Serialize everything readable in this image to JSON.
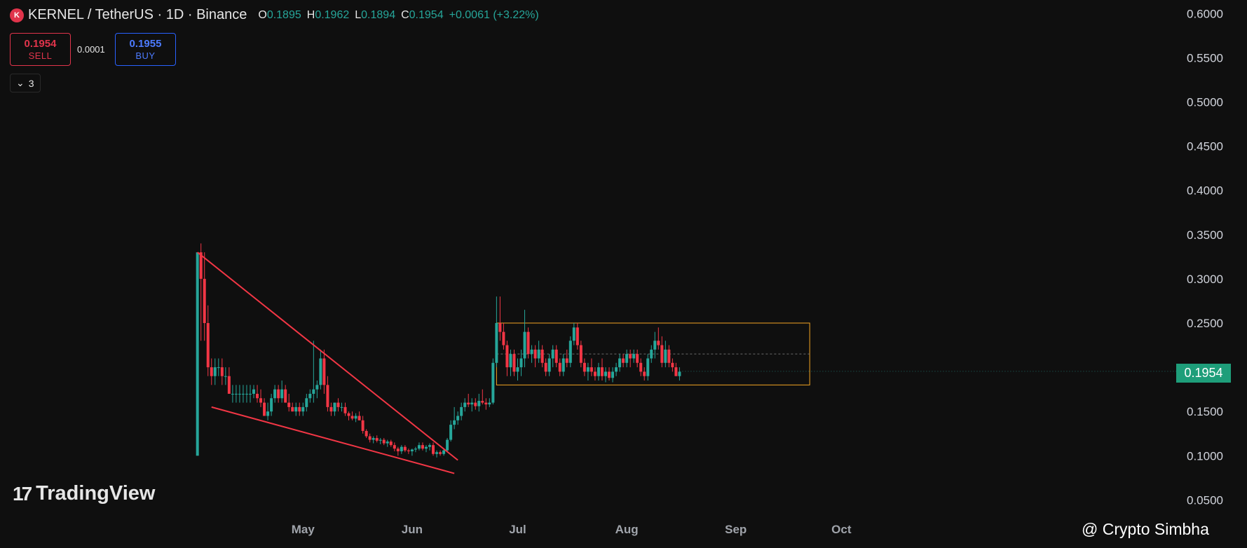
{
  "header": {
    "logo_letter": "K",
    "symbol_title": "KERNEL / TetherUS · 1D · Binance",
    "ohlc": [
      {
        "key": "O",
        "value": "0.1895"
      },
      {
        "key": "H",
        "value": "0.1962"
      },
      {
        "key": "L",
        "value": "0.1894"
      },
      {
        "key": "C",
        "value": "0.1954"
      }
    ],
    "change": "+0.0061 (+3.22%)"
  },
  "trade": {
    "sell_price": "0.1954",
    "sell_label": "SELL",
    "spread": "0.0001",
    "buy_price": "0.1955",
    "buy_label": "BUY"
  },
  "indicators": {
    "count": "3"
  },
  "branding": {
    "logo_text": "TradingView",
    "logo_mark": "17"
  },
  "current_price": "0.1954",
  "watermark": "@ Crypto Simbha",
  "colors": {
    "up": "#26a69a",
    "down": "#f23645",
    "trend": "#f23645",
    "range": "#f5a623",
    "badge": "#1e9e7a"
  },
  "chart_data": {
    "type": "candlestick",
    "y_axis": {
      "ticks": [
        "0.6000",
        "0.5500",
        "0.5000",
        "0.4500",
        "0.4000",
        "0.3500",
        "0.3000",
        "0.2500",
        "0.1500",
        "0.1000",
        "0.0500"
      ],
      "range": [
        0.05,
        0.6
      ]
    },
    "x_axis": {
      "labels": [
        {
          "text": "May",
          "day": 14
        },
        {
          "text": "Jun",
          "day": 45
        },
        {
          "text": "Jul",
          "day": 75
        },
        {
          "text": "Aug",
          "day": 106
        },
        {
          "text": "Sep",
          "day": 137
        },
        {
          "text": "Oct",
          "day": 167
        }
      ]
    },
    "candles": [
      [
        -16,
        0.1,
        0.33,
        0.1,
        0.33
      ],
      [
        -15,
        0.33,
        0.34,
        0.23,
        0.3
      ],
      [
        -14,
        0.3,
        0.33,
        0.23,
        0.25
      ],
      [
        -13,
        0.25,
        0.27,
        0.19,
        0.2
      ],
      [
        -12,
        0.2,
        0.21,
        0.18,
        0.19
      ],
      [
        -11,
        0.19,
        0.21,
        0.18,
        0.2
      ],
      [
        -10,
        0.2,
        0.21,
        0.19,
        0.2
      ],
      [
        -9,
        0.2,
        0.21,
        0.18,
        0.19
      ],
      [
        -8,
        0.19,
        0.2,
        0.18,
        0.19
      ],
      [
        -7,
        0.19,
        0.2,
        0.17,
        0.17
      ],
      [
        -6,
        0.17,
        0.18,
        0.16,
        0.17
      ],
      [
        -5,
        0.17,
        0.18,
        0.16,
        0.17
      ],
      [
        -4,
        0.17,
        0.18,
        0.16,
        0.17
      ],
      [
        -3,
        0.17,
        0.18,
        0.16,
        0.17
      ],
      [
        -2,
        0.17,
        0.18,
        0.16,
        0.17
      ],
      [
        -1,
        0.17,
        0.18,
        0.16,
        0.17
      ],
      [
        0,
        0.17,
        0.18,
        0.165,
        0.175
      ],
      [
        1,
        0.17,
        0.18,
        0.16,
        0.165
      ],
      [
        2,
        0.165,
        0.175,
        0.155,
        0.16
      ],
      [
        3,
        0.16,
        0.165,
        0.145,
        0.145
      ],
      [
        4,
        0.145,
        0.16,
        0.14,
        0.15
      ],
      [
        5,
        0.15,
        0.17,
        0.145,
        0.165
      ],
      [
        6,
        0.165,
        0.18,
        0.16,
        0.175
      ],
      [
        7,
        0.175,
        0.18,
        0.16,
        0.165
      ],
      [
        8,
        0.165,
        0.185,
        0.16,
        0.175
      ],
      [
        9,
        0.175,
        0.18,
        0.16,
        0.16
      ],
      [
        10,
        0.16,
        0.17,
        0.15,
        0.155
      ],
      [
        11,
        0.155,
        0.16,
        0.15,
        0.15
      ],
      [
        12,
        0.15,
        0.16,
        0.145,
        0.155
      ],
      [
        13,
        0.155,
        0.16,
        0.145,
        0.15
      ],
      [
        14,
        0.15,
        0.16,
        0.145,
        0.155
      ],
      [
        15,
        0.155,
        0.17,
        0.15,
        0.165
      ],
      [
        16,
        0.165,
        0.175,
        0.16,
        0.17
      ],
      [
        17,
        0.17,
        0.23,
        0.16,
        0.175
      ],
      [
        18,
        0.175,
        0.185,
        0.165,
        0.18
      ],
      [
        19,
        0.18,
        0.22,
        0.175,
        0.21
      ],
      [
        20,
        0.21,
        0.22,
        0.17,
        0.18
      ],
      [
        21,
        0.18,
        0.19,
        0.15,
        0.155
      ],
      [
        22,
        0.155,
        0.16,
        0.145,
        0.15
      ],
      [
        23,
        0.15,
        0.16,
        0.145,
        0.16
      ],
      [
        24,
        0.16,
        0.165,
        0.15,
        0.155
      ],
      [
        25,
        0.155,
        0.16,
        0.15,
        0.155
      ],
      [
        26,
        0.155,
        0.16,
        0.145,
        0.148
      ],
      [
        27,
        0.148,
        0.15,
        0.14,
        0.145
      ],
      [
        28,
        0.145,
        0.15,
        0.14,
        0.142
      ],
      [
        29,
        0.142,
        0.148,
        0.138,
        0.145
      ],
      [
        30,
        0.145,
        0.15,
        0.14,
        0.14
      ],
      [
        31,
        0.14,
        0.145,
        0.125,
        0.128
      ],
      [
        32,
        0.128,
        0.13,
        0.12,
        0.122
      ],
      [
        33,
        0.122,
        0.125,
        0.115,
        0.118
      ],
      [
        34,
        0.118,
        0.122,
        0.114,
        0.12
      ],
      [
        35,
        0.12,
        0.123,
        0.115,
        0.117
      ],
      [
        36,
        0.117,
        0.12,
        0.113,
        0.118
      ],
      [
        37,
        0.118,
        0.12,
        0.112,
        0.114
      ],
      [
        38,
        0.114,
        0.118,
        0.11,
        0.116
      ],
      [
        39,
        0.116,
        0.118,
        0.11,
        0.112
      ],
      [
        40,
        0.112,
        0.115,
        0.105,
        0.108
      ],
      [
        41,
        0.108,
        0.11,
        0.1,
        0.105
      ],
      [
        42,
        0.105,
        0.112,
        0.102,
        0.11
      ],
      [
        43,
        0.11,
        0.112,
        0.104,
        0.106
      ],
      [
        44,
        0.106,
        0.108,
        0.102,
        0.105
      ],
      [
        45,
        0.105,
        0.108,
        0.1,
        0.107
      ],
      [
        46,
        0.107,
        0.11,
        0.104,
        0.108
      ],
      [
        47,
        0.108,
        0.115,
        0.106,
        0.112
      ],
      [
        48,
        0.112,
        0.115,
        0.106,
        0.108
      ],
      [
        49,
        0.108,
        0.112,
        0.104,
        0.11
      ],
      [
        50,
        0.11,
        0.114,
        0.106,
        0.112
      ],
      [
        51,
        0.112,
        0.115,
        0.1,
        0.102
      ],
      [
        52,
        0.102,
        0.106,
        0.098,
        0.104
      ],
      [
        53,
        0.104,
        0.106,
        0.1,
        0.102
      ],
      [
        54,
        0.102,
        0.108,
        0.1,
        0.106
      ],
      [
        55,
        0.106,
        0.12,
        0.104,
        0.118
      ],
      [
        56,
        0.118,
        0.14,
        0.116,
        0.135
      ],
      [
        57,
        0.135,
        0.155,
        0.13,
        0.14
      ],
      [
        58,
        0.14,
        0.15,
        0.135,
        0.145
      ],
      [
        59,
        0.145,
        0.16,
        0.14,
        0.155
      ],
      [
        60,
        0.155,
        0.165,
        0.15,
        0.16
      ],
      [
        61,
        0.16,
        0.17,
        0.155,
        0.158
      ],
      [
        62,
        0.158,
        0.165,
        0.15,
        0.16
      ],
      [
        63,
        0.16,
        0.165,
        0.152,
        0.156
      ],
      [
        64,
        0.156,
        0.17,
        0.15,
        0.162
      ],
      [
        65,
        0.162,
        0.175,
        0.158,
        0.16
      ],
      [
        66,
        0.16,
        0.165,
        0.152,
        0.158
      ],
      [
        67,
        0.158,
        0.165,
        0.155,
        0.16
      ],
      [
        68,
        0.16,
        0.21,
        0.158,
        0.205
      ],
      [
        69,
        0.205,
        0.28,
        0.2,
        0.25
      ],
      [
        70,
        0.25,
        0.28,
        0.23,
        0.24
      ],
      [
        71,
        0.24,
        0.25,
        0.22,
        0.225
      ],
      [
        72,
        0.225,
        0.23,
        0.19,
        0.2
      ],
      [
        73,
        0.2,
        0.22,
        0.19,
        0.215
      ],
      [
        74,
        0.215,
        0.22,
        0.19,
        0.195
      ],
      [
        75,
        0.195,
        0.21,
        0.185,
        0.2
      ],
      [
        76,
        0.2,
        0.22,
        0.19,
        0.21
      ],
      [
        77,
        0.21,
        0.265,
        0.2,
        0.24
      ],
      [
        78,
        0.24,
        0.245,
        0.21,
        0.215
      ],
      [
        79,
        0.215,
        0.225,
        0.205,
        0.22
      ],
      [
        80,
        0.22,
        0.225,
        0.2,
        0.21
      ],
      [
        81,
        0.21,
        0.23,
        0.205,
        0.22
      ],
      [
        82,
        0.22,
        0.225,
        0.2,
        0.205
      ],
      [
        83,
        0.205,
        0.21,
        0.19,
        0.195
      ],
      [
        84,
        0.195,
        0.215,
        0.19,
        0.21
      ],
      [
        85,
        0.21,
        0.225,
        0.2,
        0.22
      ],
      [
        86,
        0.22,
        0.225,
        0.2,
        0.205
      ],
      [
        87,
        0.205,
        0.21,
        0.19,
        0.195
      ],
      [
        88,
        0.195,
        0.215,
        0.19,
        0.21
      ],
      [
        89,
        0.21,
        0.22,
        0.2,
        0.205
      ],
      [
        90,
        0.205,
        0.235,
        0.2,
        0.23
      ],
      [
        91,
        0.23,
        0.25,
        0.225,
        0.245
      ],
      [
        92,
        0.245,
        0.25,
        0.22,
        0.225
      ],
      [
        93,
        0.225,
        0.23,
        0.2,
        0.205
      ],
      [
        94,
        0.205,
        0.21,
        0.19,
        0.195
      ],
      [
        95,
        0.195,
        0.205,
        0.185,
        0.2
      ],
      [
        96,
        0.2,
        0.21,
        0.19,
        0.195
      ],
      [
        97,
        0.195,
        0.2,
        0.185,
        0.19
      ],
      [
        98,
        0.19,
        0.205,
        0.185,
        0.2
      ],
      [
        99,
        0.2,
        0.21,
        0.185,
        0.19
      ],
      [
        100,
        0.19,
        0.2,
        0.183,
        0.195
      ],
      [
        101,
        0.195,
        0.2,
        0.185,
        0.188
      ],
      [
        102,
        0.188,
        0.2,
        0.183,
        0.195
      ],
      [
        103,
        0.195,
        0.205,
        0.19,
        0.2
      ],
      [
        104,
        0.2,
        0.215,
        0.195,
        0.21
      ],
      [
        105,
        0.21,
        0.215,
        0.2,
        0.205
      ],
      [
        106,
        0.205,
        0.22,
        0.2,
        0.215
      ],
      [
        107,
        0.215,
        0.22,
        0.2,
        0.21
      ],
      [
        108,
        0.21,
        0.22,
        0.205,
        0.215
      ],
      [
        109,
        0.215,
        0.22,
        0.2,
        0.205
      ],
      [
        110,
        0.205,
        0.21,
        0.19,
        0.195
      ],
      [
        111,
        0.195,
        0.2,
        0.185,
        0.19
      ],
      [
        112,
        0.19,
        0.215,
        0.185,
        0.21
      ],
      [
        113,
        0.21,
        0.225,
        0.205,
        0.22
      ],
      [
        114,
        0.22,
        0.24,
        0.21,
        0.23
      ],
      [
        115,
        0.23,
        0.245,
        0.22,
        0.225
      ],
      [
        116,
        0.225,
        0.235,
        0.2,
        0.205
      ],
      [
        117,
        0.205,
        0.23,
        0.2,
        0.22
      ],
      [
        118,
        0.22,
        0.225,
        0.2,
        0.205
      ],
      [
        119,
        0.205,
        0.21,
        0.195,
        0.2
      ],
      [
        120,
        0.2,
        0.205,
        0.19,
        0.19
      ],
      [
        121,
        0.19,
        0.2,
        0.185,
        0.195
      ]
    ],
    "trendlines": [
      {
        "from": {
          "day": -16,
          "price": 0.33
        },
        "to": {
          "day": 58,
          "price": 0.095
        }
      },
      {
        "from": {
          "day": -12,
          "price": 0.155
        },
        "to": {
          "day": 57,
          "price": 0.08
        }
      }
    ],
    "range_box": {
      "from_day": 69,
      "to_day": 158,
      "top": 0.25,
      "bottom": 0.18,
      "midline": 0.215
    }
  }
}
